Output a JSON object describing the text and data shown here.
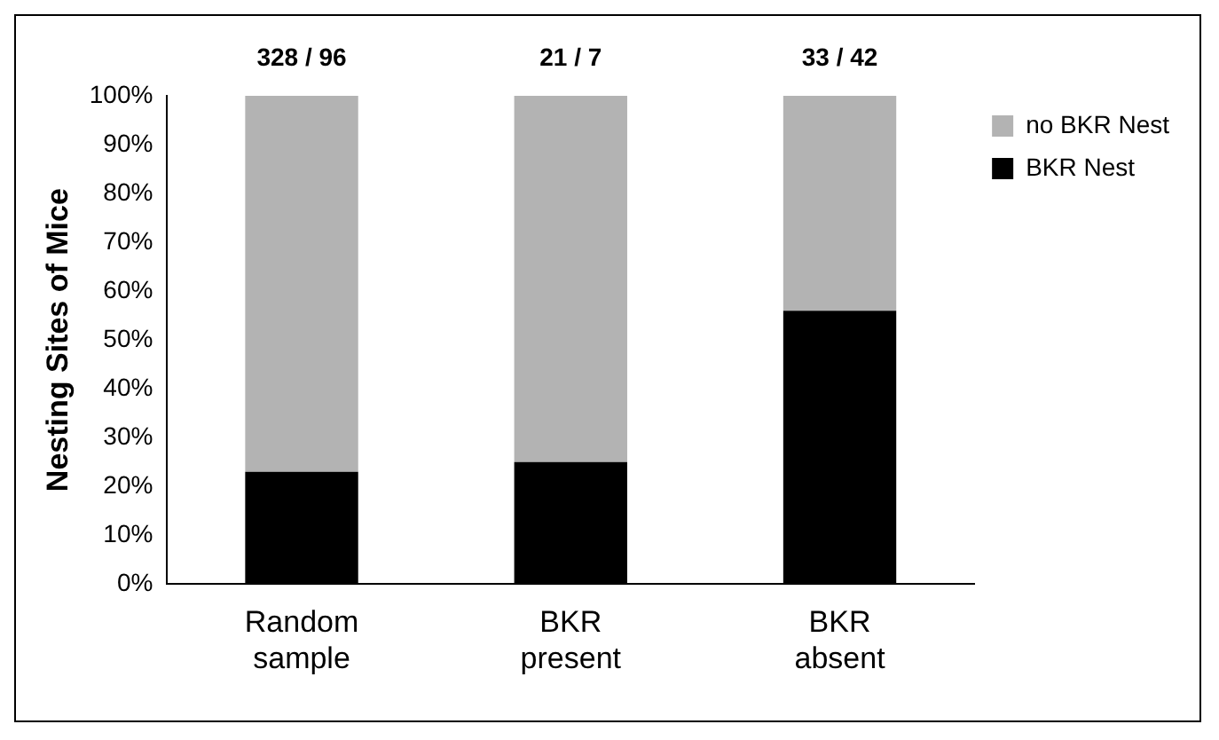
{
  "chart_data": {
    "type": "bar",
    "stacked": true,
    "ylabel": "Nesting Sites of Mice",
    "categories": [
      "Random sample",
      "BKR present",
      "BKR absent"
    ],
    "series": [
      {
        "name": "BKR Nest",
        "color": "#000000",
        "values": [
          23,
          25,
          56
        ]
      },
      {
        "name": "no BKR Nest",
        "color": "#b3b3b3",
        "values": [
          77,
          75,
          44
        ]
      }
    ],
    "ylim": [
      0,
      100
    ],
    "yticks": [
      {
        "value": 0,
        "label": "0%"
      },
      {
        "value": 10,
        "label": "10%"
      },
      {
        "value": 20,
        "label": "20%"
      },
      {
        "value": 30,
        "label": "30%"
      },
      {
        "value": 40,
        "label": "40%"
      },
      {
        "value": 50,
        "label": "50%"
      },
      {
        "value": 60,
        "label": "60%"
      },
      {
        "value": 70,
        "label": "70%"
      },
      {
        "value": 80,
        "label": "80%"
      },
      {
        "value": 90,
        "label": "90%"
      },
      {
        "value": 100,
        "label": "100%"
      }
    ],
    "annotations": [
      {
        "text": "328 / 96",
        "x": "Random sample",
        "y": 100
      },
      {
        "text": "21 / 7",
        "x": "BKR present",
        "y": 100
      },
      {
        "text": "33 / 42",
        "x": "BKR absent",
        "y": 100
      }
    ],
    "grid": false,
    "legend": "top right"
  }
}
